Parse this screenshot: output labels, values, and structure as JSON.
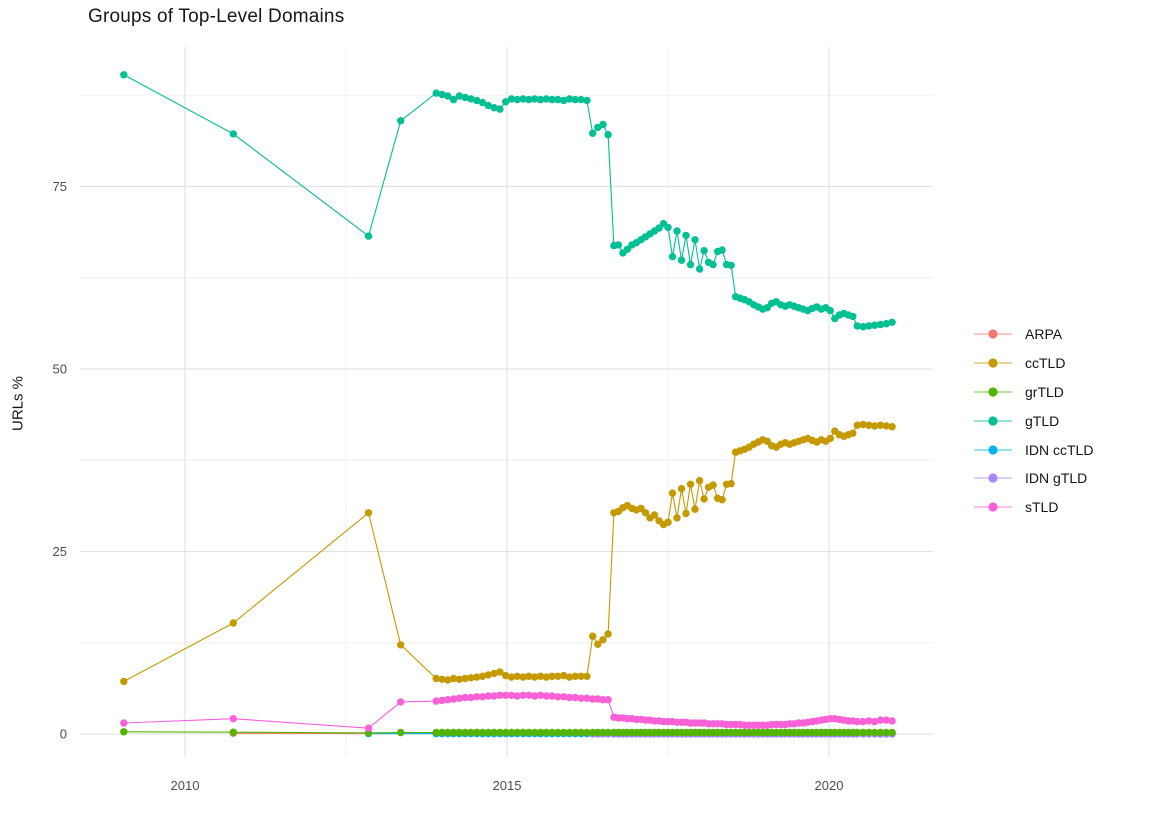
{
  "title": "Groups of Top-Level Domains",
  "axes": {
    "y_label": "URLs %",
    "y_ticks": [
      0,
      25,
      50,
      75
    ],
    "y_minor": [
      12.5,
      37.5,
      62.5,
      87.5
    ],
    "x_ticks": [
      2010,
      2015,
      2020
    ],
    "x_minor": [
      2012.5,
      2017.5
    ],
    "x_range": [
      2008.4,
      2021.6
    ],
    "y_range": [
      -3,
      94.5
    ]
  },
  "grid": {
    "major_color": "#e3e3e3",
    "minor_color": "#f0f0f0",
    "background": "#ffffff"
  },
  "chart_data": {
    "type": "line",
    "title": "Groups of Top-Level Domains",
    "xlabel": "",
    "ylabel": "URLs %",
    "legend_position": "right",
    "grid": "on",
    "draw_order": [
      0,
      4,
      5,
      1,
      2,
      3,
      6
    ],
    "x_dense": [
      2013.9,
      2013.99,
      2014.08,
      2014.17,
      2014.26,
      2014.35,
      2014.44,
      2014.53,
      2014.62,
      2014.71,
      2014.8,
      2014.89,
      2014.98,
      2015.07,
      2015.16,
      2015.25,
      2015.34,
      2015.43,
      2015.52,
      2015.61,
      2015.7,
      2015.79,
      2015.88,
      2015.97,
      2016.06,
      2016.15,
      2016.24,
      2016.33,
      2016.41,
      2016.49,
      2016.57,
      2016.66,
      2016.73,
      2016.8,
      2016.87,
      2016.94,
      2017.01,
      2017.08,
      2017.15,
      2017.22,
      2017.29,
      2017.36,
      2017.43,
      2017.5,
      2017.57,
      2017.64,
      2017.71,
      2017.78,
      2017.85,
      2017.92,
      2017.99,
      2018.06,
      2018.13,
      2018.2,
      2018.27,
      2018.34,
      2018.41,
      2018.48,
      2018.55,
      2018.62,
      2018.69,
      2018.76,
      2018.83,
      2018.9,
      2018.97,
      2019.04,
      2019.11,
      2019.18,
      2019.25,
      2019.32,
      2019.39,
      2019.46,
      2019.53,
      2019.6,
      2019.67,
      2019.74,
      2019.81,
      2019.88,
      2019.95,
      2020.02,
      2020.09,
      2020.16,
      2020.23,
      2020.3,
      2020.37,
      2020.44,
      2020.53,
      2020.62,
      2020.71,
      2020.8,
      2020.89,
      2020.98
    ],
    "series": [
      {
        "name": "ARPA",
        "color": "#F8766D",
        "sparse": [
          [
            2010.75,
            0.1
          ]
        ],
        "dense_from": 0,
        "y_const": 0.05
      },
      {
        "name": "ccTLD",
        "color": "#C49A00",
        "sparse": [
          [
            2009.05,
            7.2
          ],
          [
            2010.75,
            15.2
          ],
          [
            2012.85,
            30.3
          ],
          [
            2013.35,
            12.2
          ]
        ],
        "dense_from": 0,
        "y_dense": [
          7.6,
          7.5,
          7.4,
          7.6,
          7.5,
          7.6,
          7.7,
          7.8,
          7.9,
          8.1,
          8.3,
          8.5,
          8.0,
          7.8,
          7.9,
          7.8,
          7.9,
          7.8,
          7.9,
          7.8,
          7.9,
          7.9,
          8.0,
          7.8,
          7.9,
          7.9,
          7.9,
          13.4,
          12.3,
          12.9,
          13.7,
          30.3,
          30.5,
          31.0,
          31.3,
          30.9,
          30.7,
          30.9,
          30.3,
          29.6,
          30.0,
          29.2,
          28.7,
          29.0,
          33.0,
          29.6,
          33.6,
          30.2,
          34.2,
          30.8,
          34.7,
          32.2,
          33.8,
          34.1,
          32.3,
          32.1,
          34.2,
          34.3,
          38.6,
          38.8,
          39.0,
          39.3,
          39.7,
          40.0,
          40.3,
          40.1,
          39.5,
          39.3,
          39.7,
          39.9,
          39.7,
          39.9,
          40.1,
          40.3,
          40.5,
          40.2,
          40.0,
          40.3,
          40.1,
          40.5,
          41.5,
          41.0,
          40.8,
          41.0,
          41.2,
          42.3,
          42.4,
          42.3,
          42.2,
          42.3,
          42.2,
          42.1
        ]
      },
      {
        "name": "grTLD",
        "color": "#53B400",
        "sparse": [
          [
            2009.05,
            0.3
          ],
          [
            2010.75,
            0.25
          ],
          [
            2012.85,
            0.15
          ],
          [
            2013.35,
            0.2
          ]
        ],
        "dense_from": 0,
        "y_const": 0.2
      },
      {
        "name": "gTLD",
        "color": "#00C094",
        "sparse": [
          [
            2009.05,
            90.3
          ],
          [
            2010.75,
            82.2
          ],
          [
            2012.85,
            68.2
          ],
          [
            2013.35,
            84.0
          ]
        ],
        "dense_from": 0,
        "y_dense": [
          87.8,
          87.6,
          87.4,
          86.9,
          87.4,
          87.2,
          87.0,
          86.8,
          86.5,
          86.1,
          85.8,
          85.6,
          86.6,
          87.0,
          86.9,
          87.0,
          86.9,
          87.0,
          86.9,
          87.0,
          86.9,
          86.9,
          86.8,
          87.0,
          86.9,
          86.9,
          86.8,
          82.3,
          83.1,
          83.5,
          82.1,
          66.9,
          67.0,
          65.9,
          66.4,
          67.0,
          67.3,
          67.7,
          68.1,
          68.5,
          68.9,
          69.3,
          69.9,
          69.4,
          65.4,
          68.9,
          64.9,
          68.3,
          64.3,
          67.7,
          63.7,
          66.2,
          64.6,
          64.3,
          66.1,
          66.3,
          64.3,
          64.2,
          59.9,
          59.7,
          59.5,
          59.2,
          58.8,
          58.5,
          58.2,
          58.4,
          59.0,
          59.2,
          58.8,
          58.6,
          58.8,
          58.6,
          58.4,
          58.2,
          58.0,
          58.3,
          58.5,
          58.2,
          58.4,
          58.0,
          56.9,
          57.4,
          57.6,
          57.4,
          57.2,
          55.9,
          55.8,
          55.9,
          56.0,
          56.1,
          56.2,
          56.4
        ]
      },
      {
        "name": "IDN ccTLD",
        "color": "#00B6EB",
        "sparse": [
          [
            2012.85,
            0.05
          ]
        ],
        "dense_from": 0,
        "y_const": 0.05
      },
      {
        "name": "IDN gTLD",
        "color": "#A58AFF",
        "sparse": [],
        "dense_from": 27,
        "y_const": 0.0
      },
      {
        "name": "sTLD",
        "color": "#FB61D7",
        "sparse": [
          [
            2009.05,
            1.5
          ],
          [
            2010.75,
            2.1
          ],
          [
            2012.85,
            0.8
          ],
          [
            2013.35,
            4.4
          ]
        ],
        "dense_from": 0,
        "y_dense": [
          4.5,
          4.6,
          4.7,
          4.8,
          4.9,
          5.0,
          5.0,
          5.1,
          5.1,
          5.2,
          5.2,
          5.3,
          5.3,
          5.3,
          5.2,
          5.3,
          5.3,
          5.2,
          5.3,
          5.2,
          5.2,
          5.1,
          5.1,
          5.0,
          5.0,
          4.9,
          4.9,
          4.8,
          4.8,
          4.7,
          4.7,
          2.3,
          2.2,
          2.2,
          2.1,
          2.1,
          2.0,
          2.0,
          1.9,
          1.9,
          1.8,
          1.8,
          1.7,
          1.7,
          1.7,
          1.6,
          1.6,
          1.6,
          1.5,
          1.5,
          1.5,
          1.5,
          1.4,
          1.4,
          1.4,
          1.4,
          1.3,
          1.3,
          1.3,
          1.3,
          1.2,
          1.2,
          1.2,
          1.2,
          1.2,
          1.2,
          1.3,
          1.3,
          1.3,
          1.3,
          1.4,
          1.4,
          1.5,
          1.5,
          1.6,
          1.7,
          1.8,
          1.9,
          2.0,
          2.1,
          2.1,
          2.0,
          1.9,
          1.8,
          1.8,
          1.7,
          1.7,
          1.8,
          1.7,
          1.9,
          1.9,
          1.8
        ]
      }
    ]
  }
}
